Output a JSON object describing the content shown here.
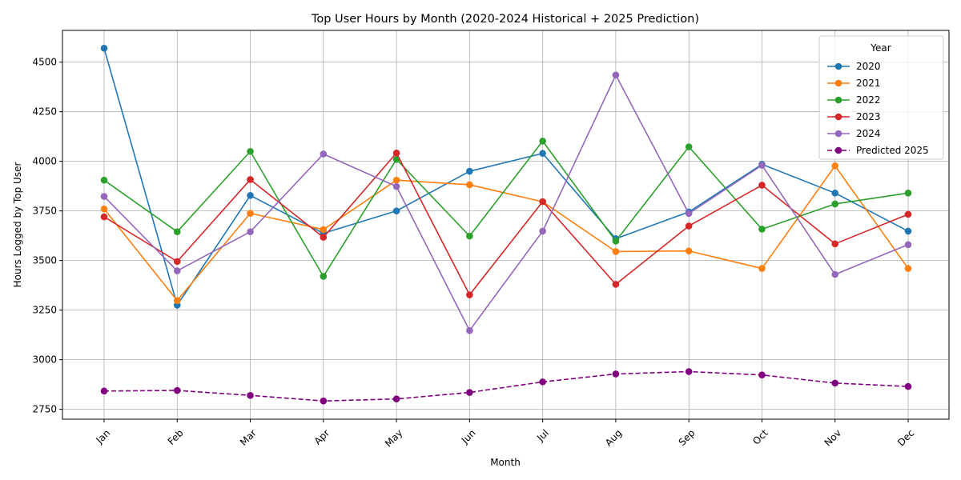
{
  "chart_data": {
    "type": "line",
    "title": "Top User Hours by Month (2020-2024 Historical + 2025 Prediction)",
    "xlabel": "Month",
    "ylabel": "Hours Logged by Top User",
    "categories": [
      "Jan",
      "Feb",
      "Mar",
      "Apr",
      "May",
      "Jun",
      "Jul",
      "Aug",
      "Sep",
      "Oct",
      "Nov",
      "Dec"
    ],
    "ylim": [
      2700,
      4660
    ],
    "yticks": [
      2750,
      3000,
      3250,
      3500,
      3750,
      4000,
      4250,
      4500
    ],
    "grid": true,
    "legend": {
      "title": "Year",
      "position": "top-right"
    },
    "series": [
      {
        "name": "2020",
        "color": "#1f77b4",
        "dashed": false,
        "values": [
          4570,
          3275,
          3828,
          3637,
          3750,
          3950,
          4040,
          3610,
          3745,
          3985,
          3840,
          3648
        ]
      },
      {
        "name": "2021",
        "color": "#ff7f0e",
        "dashed": false,
        "values": [
          3760,
          3298,
          3738,
          3656,
          3905,
          3882,
          3796,
          3545,
          3548,
          3460,
          3977,
          3460
        ]
      },
      {
        "name": "2022",
        "color": "#2ca02c",
        "dashed": false,
        "values": [
          3905,
          3645,
          4050,
          3420,
          4010,
          3623,
          4102,
          3598,
          4073,
          3658,
          3785,
          3840
        ]
      },
      {
        "name": "2023",
        "color": "#d62728",
        "dashed": false,
        "values": [
          3720,
          3495,
          3908,
          3617,
          4042,
          3327,
          3797,
          3380,
          3674,
          3880,
          3584,
          3733
        ]
      },
      {
        "name": "2024",
        "color": "#9467bd",
        "dashed": false,
        "values": [
          3823,
          3448,
          3645,
          4037,
          3873,
          3147,
          3648,
          4435,
          3737,
          3980,
          3430,
          3580
        ]
      },
      {
        "name": "Predicted 2025",
        "color": "#800080",
        "dashed": true,
        "values": [
          2842,
          2845,
          2820,
          2792,
          2802,
          2835,
          2888,
          2928,
          2940,
          2923,
          2882,
          2865
        ]
      }
    ]
  }
}
